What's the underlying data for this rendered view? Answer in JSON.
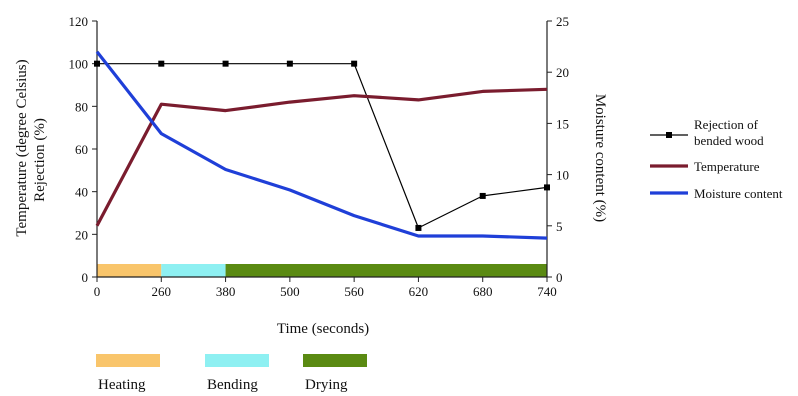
{
  "chart_data": {
    "type": "line",
    "x": [
      0,
      260,
      380,
      500,
      560,
      620,
      680,
      740
    ],
    "x_tick_labels": [
      "0",
      "260",
      "380",
      "500",
      "560",
      "620",
      "680",
      "740"
    ],
    "xlabel": "Time (seconds)",
    "ylabel_left": [
      "Temperature (degree Celsius)",
      "Rejection (%)"
    ],
    "ylabel_right": "Moisture content (%)",
    "ylim_left": [
      0,
      120
    ],
    "yticks_left": [
      0,
      20,
      40,
      60,
      80,
      100,
      120
    ],
    "ylim_right": [
      0,
      25
    ],
    "yticks_right": [
      0,
      5,
      10,
      15,
      20,
      25
    ],
    "series": [
      {
        "name": "Rejection of bended wood",
        "axis": "left",
        "color": "#000000",
        "marker": "square",
        "values": [
          100,
          100,
          100,
          100,
          100,
          23,
          38,
          42
        ]
      },
      {
        "name": "Temperature",
        "axis": "left",
        "color": "#7a1c2e",
        "values": [
          24,
          81,
          78,
          82,
          85,
          83,
          87,
          88
        ]
      },
      {
        "name": "Moisture content",
        "axis": "right",
        "color": "#1f3fd8",
        "values": [
          22,
          14,
          10.5,
          8.5,
          6,
          4,
          4,
          3.8
        ]
      }
    ],
    "legend_position": "right",
    "phases": [
      {
        "label": "Heating",
        "start": 0,
        "end": 260,
        "color": "#f9c56b"
      },
      {
        "label": "Bending",
        "start": 260,
        "end": 380,
        "color": "#8ef0f2"
      },
      {
        "label": "Drying",
        "start": 380,
        "end": 740,
        "color": "#5a8a12"
      }
    ],
    "grid": false
  }
}
